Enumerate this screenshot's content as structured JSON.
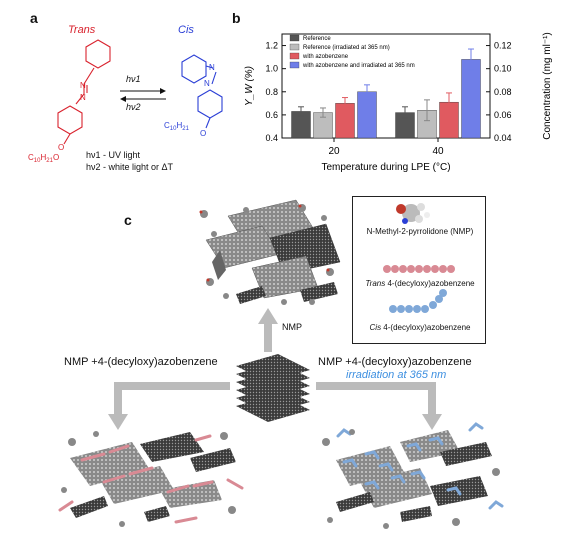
{
  "panel_a": {
    "label": "a",
    "trans_label": "Trans",
    "cis_label": "Cis",
    "hv1": "hν1",
    "hv2": "hν2",
    "substituent_trans": "C10H21O",
    "substituent_cis": "C10H21",
    "note1": "hν1 - UV light",
    "note2": "hν2 - white light or ΔT",
    "colors": {
      "trans": "#d9232e",
      "cis": "#2b3fd6"
    }
  },
  "panel_b": {
    "label": "b",
    "xlabel": "Temperature during LPE (°C)",
    "ylabel_left": "Y_W (%)",
    "ylabel_right": "Concentration (mg ml⁻¹)",
    "left_ticks": [
      "0.4",
      "0.6",
      "0.8",
      "1.0",
      "1.2"
    ],
    "right_ticks": [
      "0.04",
      "0.06",
      "0.08",
      "0.10",
      "0.12"
    ],
    "x_ticks": [
      "20",
      "40"
    ]
  },
  "chart_data": {
    "type": "bar",
    "categories": [
      "20",
      "40"
    ],
    "xlabel": "Temperature during LPE (°C)",
    "ylabel": "Y_W (%)",
    "ylabel_right": "Concentration (mg ml⁻¹)",
    "ylim": [
      0.4,
      1.3
    ],
    "ylim_right": [
      0.04,
      0.13
    ],
    "legend_placement": "top-left",
    "series": [
      {
        "name": "Reference",
        "color": "#555555",
        "values": [
          0.63,
          0.62
        ],
        "errors": [
          0.04,
          0.05
        ]
      },
      {
        "name": "Reference (irradiated at 365 nm)",
        "color": "#bdbdbd",
        "values": [
          0.62,
          0.64
        ],
        "errors": [
          0.04,
          0.09
        ]
      },
      {
        "name": "with azobenzene",
        "color": "#e05a60",
        "values": [
          0.7,
          0.71
        ],
        "errors": [
          0.05,
          0.08
        ]
      },
      {
        "name": "with azobenzene and irradiated at 365 nm",
        "color": "#6f7ee8",
        "values": [
          0.8,
          1.08
        ],
        "errors": [
          0.06,
          0.09
        ]
      }
    ]
  },
  "panel_c": {
    "label": "c",
    "legend": {
      "nmp": "N-Methyl-2-pyrrolidone (NMP)",
      "trans": "Trans 4-(decyloxy)azobenzene",
      "cis": "Cis 4-(decyloxy)azobenzene",
      "trans_word": "Trans",
      "trans_rest": " 4-(decyloxy)azobenzene",
      "cis_word": "Cis",
      "cis_rest": " 4-(decyloxy)azobenzene"
    },
    "arrow_up_label": "NMP",
    "left_caption": "NMP +4-(decyloxy)azobenzene",
    "right_caption": "NMP +4-(decyloxy)azobenzene",
    "right_caption_sub": "irradiation at 365 nm",
    "colors": {
      "trans": "#d98a94",
      "cis": "#7fa8d8",
      "graphene": "#444444",
      "arrow": "#bbbbbb"
    }
  }
}
